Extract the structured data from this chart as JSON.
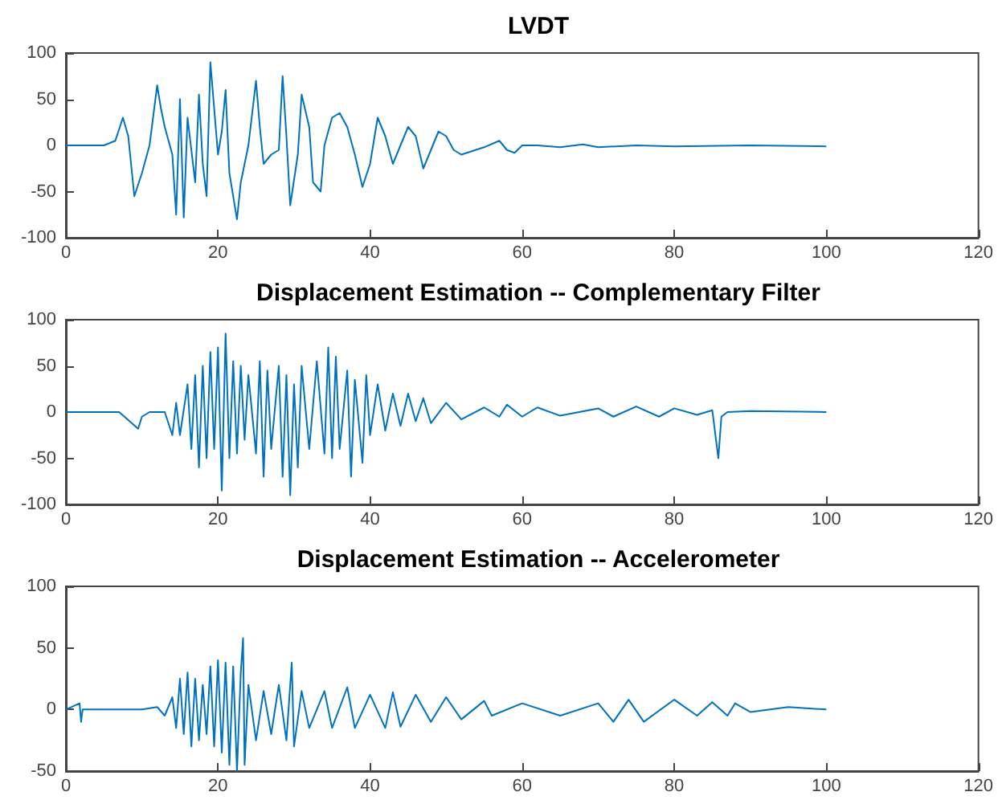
{
  "chart_data": [
    {
      "type": "line",
      "title": "LVDT",
      "xlim": [
        0,
        120
      ],
      "xticks": [
        0,
        20,
        40,
        60,
        80,
        100,
        120
      ],
      "ylim": [
        -100,
        100
      ],
      "yticks": [
        -100,
        -50,
        0,
        50,
        100
      ],
      "marker": "none",
      "line_style": "solid",
      "series": [
        {
          "color": "#0072bd",
          "x": [
            0,
            5,
            6.5,
            7.5,
            8.2,
            9,
            10,
            11,
            12,
            12.5,
            13,
            14,
            14.5,
            15,
            15.5,
            16,
            17,
            17.5,
            18,
            18.5,
            19,
            19.5,
            20,
            20.5,
            21,
            21.5,
            22.5,
            23,
            24,
            25,
            25.5,
            26,
            27,
            28,
            28.5,
            29,
            29.5,
            30.5,
            31,
            32,
            32.5,
            33.5,
            34,
            35,
            36,
            37,
            38,
            39,
            40,
            41,
            42,
            43,
            44,
            45,
            46,
            47,
            48,
            49,
            50,
            51,
            52,
            55,
            57,
            58,
            59,
            60,
            62,
            65,
            68,
            70,
            75,
            80,
            90,
            100
          ],
          "values": [
            0,
            0,
            5,
            30,
            10,
            -55,
            -30,
            0,
            65,
            40,
            20,
            -10,
            -75,
            50,
            -78,
            30,
            -40,
            55,
            -20,
            -55,
            90,
            40,
            -10,
            15,
            60,
            -30,
            -80,
            -40,
            0,
            70,
            20,
            -20,
            -10,
            -5,
            75,
            10,
            -65,
            -10,
            55,
            20,
            -40,
            -50,
            0,
            30,
            35,
            20,
            -10,
            -45,
            -20,
            30,
            10,
            -20,
            0,
            20,
            10,
            -25,
            -5,
            15,
            10,
            -5,
            -10,
            -2,
            5,
            -5,
            -8,
            0,
            0,
            -2,
            1,
            -2,
            0,
            -1,
            0,
            -1
          ]
        }
      ]
    },
    {
      "type": "line",
      "title": "Displacement Estimation -- Complementary Filter",
      "xlim": [
        0,
        120
      ],
      "xticks": [
        0,
        20,
        40,
        60,
        80,
        100,
        120
      ],
      "ylim": [
        -100,
        100
      ],
      "yticks": [
        -100,
        -50,
        0,
        50,
        100
      ],
      "marker": "none",
      "line_style": "solid",
      "series": [
        {
          "color": "#0072bd",
          "x": [
            0,
            7,
            9.5,
            10,
            11,
            13,
            14,
            14.5,
            15,
            16,
            16.5,
            17,
            17.5,
            18,
            18.5,
            19,
            19.5,
            20,
            20.5,
            21,
            21.5,
            22,
            22.5,
            23,
            23.5,
            24,
            25,
            25.5,
            26,
            26.5,
            27,
            28,
            28.5,
            29,
            29.5,
            30,
            30.5,
            31,
            32,
            33,
            34,
            34.5,
            35,
            35.5,
            36,
            37,
            37.5,
            38,
            39,
            39.5,
            40,
            41,
            42,
            43,
            44,
            45,
            46,
            47,
            48,
            50,
            52,
            55,
            57,
            58,
            60,
            62,
            65,
            70,
            72,
            75,
            78,
            80,
            83,
            85,
            85.8,
            86.2,
            87,
            90,
            100
          ],
          "values": [
            0,
            0,
            -18,
            -5,
            0,
            0,
            -25,
            10,
            -25,
            30,
            -40,
            40,
            -60,
            50,
            -50,
            65,
            -40,
            70,
            -85,
            85,
            -50,
            55,
            -45,
            50,
            -30,
            40,
            -45,
            55,
            -70,
            45,
            -40,
            50,
            -70,
            40,
            -90,
            30,
            -60,
            50,
            -40,
            55,
            -45,
            70,
            -50,
            60,
            -40,
            45,
            -70,
            35,
            -55,
            40,
            -25,
            30,
            -20,
            20,
            -15,
            20,
            -10,
            15,
            -12,
            10,
            -8,
            5,
            -5,
            8,
            -5,
            5,
            -4,
            4,
            -5,
            6,
            -5,
            4,
            -3,
            2,
            -50,
            -5,
            0,
            1,
            0
          ]
        }
      ]
    },
    {
      "type": "line",
      "title": "Displacement Estimation -- Accelerometer",
      "xlim": [
        0,
        120
      ],
      "xticks": [
        0,
        20,
        40,
        60,
        80,
        100,
        120
      ],
      "ylim": [
        -50,
        100
      ],
      "yticks": [
        -50,
        0,
        50,
        100
      ],
      "marker": "none",
      "line_style": "solid",
      "series": [
        {
          "color": "#0072bd",
          "x": [
            0,
            1.8,
            2,
            2.2,
            10,
            12,
            13,
            14,
            14.5,
            15,
            15.5,
            16,
            16.5,
            17,
            17.5,
            18,
            18.5,
            19,
            19.5,
            20,
            20.5,
            21,
            21.5,
            22,
            22.5,
            23,
            23.3,
            23.5,
            24,
            25,
            26,
            27,
            28,
            29,
            29.7,
            30,
            31,
            32,
            34,
            35,
            37,
            38,
            40,
            42,
            43,
            44,
            46,
            48,
            50,
            52,
            55,
            56,
            60,
            65,
            70,
            72,
            74,
            76,
            80,
            83,
            85,
            87,
            88,
            90,
            95,
            100
          ],
          "values": [
            0,
            5,
            -10,
            0,
            0,
            2,
            -5,
            10,
            -15,
            25,
            -20,
            30,
            -30,
            25,
            -25,
            20,
            -20,
            35,
            -30,
            40,
            -35,
            38,
            -45,
            35,
            -50,
            30,
            58,
            -45,
            20,
            -25,
            15,
            -20,
            20,
            -25,
            38,
            -30,
            15,
            -15,
            15,
            -15,
            18,
            -15,
            12,
            -15,
            14,
            -14,
            12,
            -10,
            10,
            -8,
            7,
            -5,
            5,
            -5,
            5,
            -10,
            8,
            -10,
            8,
            -5,
            6,
            -5,
            5,
            -2,
            2,
            0
          ]
        }
      ]
    }
  ]
}
